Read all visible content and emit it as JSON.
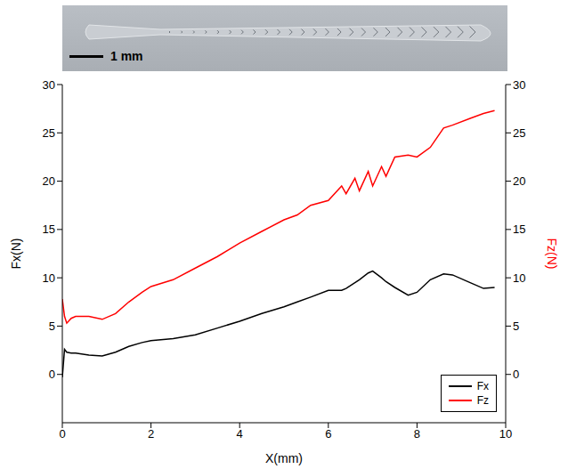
{
  "chart_data": {
    "type": "line",
    "x_label": "X(mm)",
    "y_label": "Fx(N)",
    "y2_label": "Fz(N)",
    "annotations": [
      "1 mm"
    ],
    "x": [
      0,
      0.05,
      0.1,
      0.2,
      0.3,
      0.6,
      0.9,
      1.2,
      1.5,
      1.8,
      2.0,
      2.5,
      3.0,
      3.5,
      4.0,
      4.5,
      5.0,
      5.3,
      5.6,
      6.0,
      6.3,
      6.4,
      6.6,
      6.7,
      6.9,
      7.0,
      7.2,
      7.3,
      7.5,
      7.8,
      8.0,
      8.3,
      8.6,
      8.8,
      9.2,
      9.5,
      9.75
    ],
    "series": [
      {
        "name": "Fx",
        "color": "#000000",
        "values": [
          -0.3,
          2.6,
          2.3,
          2.2,
          2.2,
          2.0,
          1.9,
          2.3,
          2.9,
          3.3,
          3.5,
          3.7,
          4.1,
          4.8,
          5.5,
          6.3,
          7.0,
          7.5,
          8.0,
          8.7,
          8.7,
          8.9,
          9.5,
          9.8,
          10.5,
          10.7,
          10.0,
          9.6,
          9.0,
          8.2,
          8.5,
          9.8,
          10.4,
          10.3,
          9.5,
          8.9,
          9.0
        ]
      },
      {
        "name": "Fz",
        "color": "#ff0000",
        "axis": "y2",
        "values": [
          7.8,
          6.0,
          5.3,
          5.8,
          6.0,
          6.0,
          5.7,
          6.3,
          7.5,
          8.5,
          9.1,
          9.8,
          11.0,
          12.2,
          13.6,
          14.8,
          16.0,
          16.5,
          17.5,
          18.0,
          19.5,
          18.7,
          20.3,
          19.0,
          21.0,
          19.5,
          21.5,
          20.5,
          22.5,
          22.7,
          22.5,
          23.5,
          25.5,
          25.8,
          26.5,
          27.0,
          27.3
        ]
      }
    ],
    "xlim": [
      0,
      10
    ],
    "xticks": [
      0,
      2,
      4,
      6,
      8,
      10
    ],
    "ylim": [
      -5,
      30
    ],
    "yticks": [
      0,
      5,
      10,
      15,
      20,
      25,
      30
    ],
    "y2lim": [
      -5,
      30
    ],
    "y2ticks": [
      0,
      5,
      10,
      15,
      20,
      25,
      30
    ],
    "grid": false,
    "legend": "lower right"
  }
}
